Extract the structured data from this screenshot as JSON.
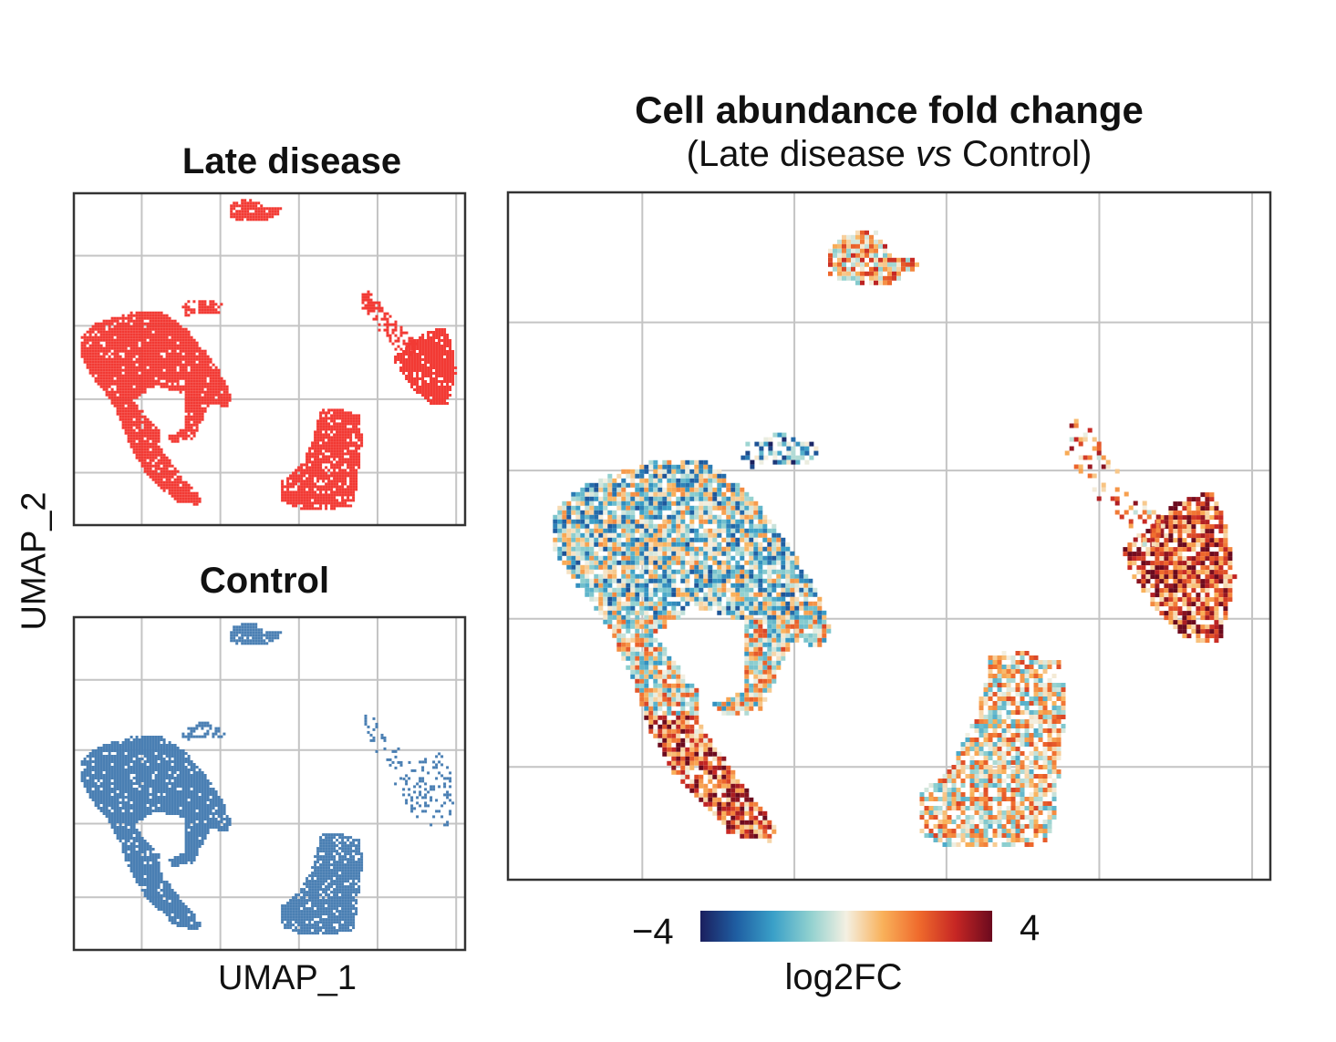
{
  "chart_data": [
    {
      "type": "scatter",
      "title": "Late disease",
      "xlabel": "UMAP_1",
      "ylabel": "UMAP_2",
      "color": "#f23a34",
      "grid": true,
      "ticklabels": false
    },
    {
      "type": "scatter",
      "title": "Control",
      "xlabel": "UMAP_1",
      "ylabel": "UMAP_2",
      "color": "#4a7fb3",
      "grid": true,
      "ticklabels": false
    },
    {
      "type": "heatmap",
      "title": "Cell abundance fold change",
      "subtitle_prefix": "(Late disease ",
      "subtitle_italic": "vs",
      "subtitle_suffix": " Control)",
      "grid": true,
      "colorbar": {
        "label": "log2FC",
        "min": -4,
        "max": 4,
        "min_label": "−4",
        "max_label": "4",
        "colormap": [
          "#1b1f5e",
          "#1f5fa3",
          "#3aa0c8",
          "#8fd0cf",
          "#f4f0e2",
          "#f9b15a",
          "#ef6a2c",
          "#c62624",
          "#6b0a1e"
        ]
      }
    }
  ],
  "shared_axes": {
    "xlabel": "UMAP_1",
    "ylabel": "UMAP_2"
  }
}
